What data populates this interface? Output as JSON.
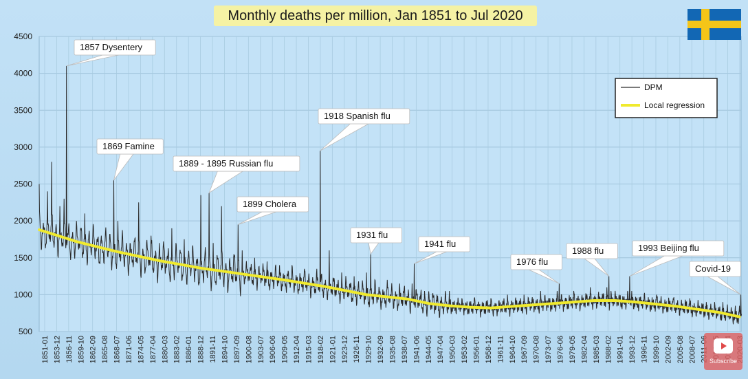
{
  "chart_data": {
    "type": "line",
    "title": "Monthly deaths per million, Jan 1851 to Jul 2020",
    "ylim": [
      500,
      4500
    ],
    "yticks": [
      500,
      1000,
      1500,
      2000,
      2500,
      3000,
      3500,
      4000,
      4500
    ],
    "x_tick_labels": [
      "1851-01",
      "1853-12",
      "1856-11",
      "1859-10",
      "1862-09",
      "1865-08",
      "1868-07",
      "1871-06",
      "1874-05",
      "1877-04",
      "1880-03",
      "1883-02",
      "1886-01",
      "1888-12",
      "1891-11",
      "1894-10",
      "1897-09",
      "1900-08",
      "1903-07",
      "1906-06",
      "1909-05",
      "1912-04",
      "1915-03",
      "1918-02",
      "1921-01",
      "1923-12",
      "1926-11",
      "1929-10",
      "1932-09",
      "1935-08",
      "1938-07",
      "1941-06",
      "1944-05",
      "1947-04",
      "1950-03",
      "1953-02",
      "1956-01",
      "1958-12",
      "1961-11",
      "1964-10",
      "1967-09",
      "1970-08",
      "1973-07",
      "1976-06",
      "1979-05",
      "1982-04",
      "1985-03",
      "1988-02",
      "1991-01",
      "1993-12",
      "1996-11",
      "1999-10",
      "2002-09",
      "2005-08",
      "2008-07",
      "2011-06",
      "2014-05",
      "2017-04",
      "2020-03"
    ],
    "grid": true,
    "legend_position": "top-right",
    "series": [
      {
        "name": "DPM",
        "color": "#2a2a2a",
        "x": [
          1851.0,
          1852.0,
          1853.0,
          1854.0,
          1855.0,
          1856.0,
          1857.0,
          1857.6,
          1858.0,
          1860.0,
          1862.0,
          1864.0,
          1866.0,
          1869.0,
          1870.0,
          1872.0,
          1875.0,
          1878.0,
          1880.0,
          1883.0,
          1886.0,
          1888.0,
          1890.0,
          1892.0,
          1893.0,
          1895.0,
          1898.0,
          1899.0,
          1900.0,
          1903.0,
          1906.0,
          1909.0,
          1912.0,
          1915.0,
          1918.0,
          1918.8,
          1919.0,
          1921.0,
          1924.0,
          1927.0,
          1930.0,
          1931.0,
          1932.0,
          1935.0,
          1938.0,
          1941.0,
          1941.5,
          1942.0,
          1944.0,
          1947.0,
          1950.0,
          1953.0,
          1956.0,
          1960.0,
          1964.0,
          1968.0,
          1972.0,
          1976.0,
          1976.5,
          1977.0,
          1980.0,
          1984.0,
          1988.0,
          1988.5,
          1989.0,
          1993.0,
          1993.5,
          1994.0,
          1997.0,
          2000.0,
          2004.0,
          2008.0,
          2012.0,
          2016.0,
          2019.0,
          2020.0,
          2020.3
        ],
        "values": [
          2500,
          1600,
          2400,
          2800,
          1900,
          2200,
          2300,
          4100,
          1800,
          2000,
          2100,
          1900,
          1800,
          2550,
          2000,
          1700,
          2250,
          1800,
          1700,
          1900,
          1750,
          1600,
          2350,
          2380,
          1700,
          2200,
          1550,
          1950,
          1600,
          1500,
          1450,
          1400,
          1400,
          1350,
          1350,
          2950,
          1200,
          1600,
          1300,
          1250,
          1300,
          1550,
          1200,
          1200,
          1150,
          1150,
          1420,
          1050,
          1050,
          1000,
          1050,
          950,
          950,
          950,
          1000,
          1000,
          1050,
          1050,
          1150,
          1000,
          1050,
          1100,
          1100,
          1250,
          1050,
          1050,
          1250,
          1050,
          1000,
          1000,
          950,
          950,
          900,
          900,
          850,
          850,
          1000
        ]
      },
      {
        "name": "Local regression",
        "color": "#f0ea2e",
        "x": [
          1851,
          1860,
          1870,
          1880,
          1890,
          1900,
          1910,
          1920,
          1930,
          1940,
          1945,
          1950,
          1955,
          1960,
          1965,
          1970,
          1975,
          1980,
          1985,
          1990,
          1995,
          2000,
          2005,
          2010,
          2015,
          2020
        ],
        "values": [
          1880,
          1720,
          1580,
          1460,
          1360,
          1280,
          1200,
          1110,
          1000,
          940,
          880,
          850,
          830,
          820,
          840,
          860,
          880,
          900,
          920,
          920,
          900,
          870,
          840,
          800,
          760,
          700
        ]
      }
    ],
    "annotations": [
      {
        "text": "1857 Dysentery",
        "x": 1857.6,
        "y": 4100
      },
      {
        "text": "1869 Famine",
        "x": 1869.0,
        "y": 2550
      },
      {
        "text": "1889 - 1895 Russian flu",
        "x": 1892.0,
        "y": 2380
      },
      {
        "text": "1899 Cholera",
        "x": 1899.0,
        "y": 1950
      },
      {
        "text": "1918 Spanish flu",
        "x": 1918.8,
        "y": 2950
      },
      {
        "text": "1931 flu",
        "x": 1931.0,
        "y": 1550
      },
      {
        "text": "1941 flu",
        "x": 1941.5,
        "y": 1420
      },
      {
        "text": "1976 flu",
        "x": 1976.5,
        "y": 1150
      },
      {
        "text": "1988 flu",
        "x": 1988.5,
        "y": 1250
      },
      {
        "text": "1993 Beijing flu",
        "x": 1993.5,
        "y": 1250
      },
      {
        "text": "Covid-19",
        "x": 2020.3,
        "y": 1000
      }
    ],
    "legend": [
      "DPM",
      "Local regression"
    ]
  },
  "overlay": {
    "subscribe_label": "Subscribe",
    "flag_colors": {
      "blue": "#1267b4",
      "yellow": "#f5c518"
    }
  }
}
